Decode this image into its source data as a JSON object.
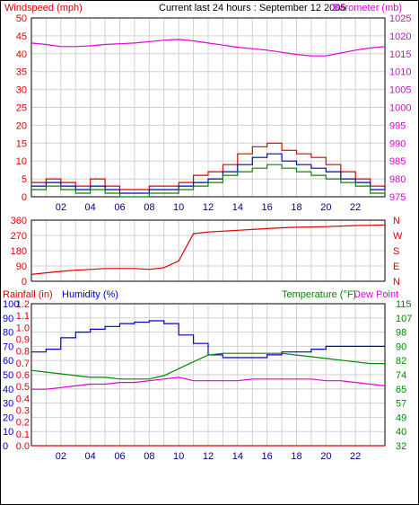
{
  "header": {
    "title": "Current last 24 hours : September 12 2005",
    "windspeed_label": "Windspeed (mph)",
    "barometer_label": "Barometer (mb)"
  },
  "colors": {
    "red": "#dd0000",
    "blue": "#0000cc",
    "green": "#008800",
    "magenta": "#dd00dd",
    "grid": "#d0d0d0",
    "frame": "#000000"
  },
  "x_ticks": [
    "02",
    "04",
    "06",
    "08",
    "10",
    "12",
    "14",
    "16",
    "18",
    "20",
    "22"
  ],
  "chart_data": [
    {
      "type": "line",
      "name": "wind-barometer",
      "ylabel_left": "Windspeed (mph)",
      "ylabel_right": "Barometer (mb)",
      "y_left_ticks": [
        "50",
        "45",
        "40",
        "35",
        "30",
        "25",
        "20",
        "15",
        "10",
        "5",
        "0"
      ],
      "y_left_range": [
        0,
        50
      ],
      "y_right_ticks": [
        "1025",
        "1020",
        "1015",
        "1010",
        "1005",
        "1000",
        "995",
        "990",
        "985",
        "980",
        "975"
      ],
      "y_right_range": [
        975,
        1025
      ],
      "x_hours": [
        0,
        1,
        2,
        3,
        4,
        5,
        6,
        7,
        8,
        9,
        10,
        11,
        12,
        13,
        14,
        15,
        16,
        17,
        18,
        19,
        20,
        21,
        22,
        23,
        24
      ],
      "series": [
        {
          "name": "barometer",
          "color": "#dd00dd",
          "axis": "right",
          "values": [
            1018.0,
            1017.6,
            1017.0,
            1017.0,
            1017.2,
            1017.6,
            1017.8,
            1018.0,
            1018.4,
            1018.8,
            1019.0,
            1018.6,
            1018.0,
            1017.4,
            1016.8,
            1016.4,
            1016.0,
            1015.4,
            1014.8,
            1014.4,
            1014.4,
            1015.2,
            1016.0,
            1016.6,
            1017.0
          ]
        },
        {
          "name": "gust",
          "color": "#dd0000",
          "axis": "left",
          "values": [
            4,
            5,
            4,
            3,
            5,
            3,
            2,
            2,
            3,
            3,
            4,
            6,
            7,
            9,
            12,
            14,
            15,
            13,
            12,
            11,
            9,
            7,
            5,
            3,
            4
          ]
        },
        {
          "name": "windspeed",
          "color": "#0000cc",
          "axis": "left",
          "values": [
            3,
            4,
            3,
            2,
            3,
            2,
            1,
            1,
            2,
            2,
            3,
            4,
            5,
            7,
            9,
            11,
            12,
            10,
            9,
            8,
            7,
            5,
            4,
            2,
            3
          ]
        },
        {
          "name": "average",
          "color": "#008800",
          "axis": "left",
          "values": [
            2,
            3,
            2,
            1,
            2,
            1,
            0,
            0,
            1,
            1,
            2,
            3,
            4,
            6,
            7,
            8,
            9,
            8,
            7,
            6,
            5,
            4,
            3,
            1,
            2
          ]
        }
      ]
    },
    {
      "type": "line",
      "name": "wind-direction",
      "y_left_ticks": [
        "360",
        "270",
        "180",
        "90",
        "0"
      ],
      "y_left_range": [
        0,
        360
      ],
      "y_right_ticks": [
        "N",
        "W",
        "S",
        "E",
        "N"
      ],
      "x_hours": [
        0,
        1,
        2,
        3,
        4,
        5,
        6,
        7,
        8,
        9,
        10,
        10.5,
        11,
        12,
        13,
        14,
        15,
        16,
        17,
        18,
        19,
        20,
        21,
        22,
        23,
        24
      ],
      "series": [
        {
          "name": "direction",
          "color": "#dd0000",
          "values": [
            40,
            50,
            58,
            65,
            70,
            75,
            75,
            75,
            70,
            80,
            120,
            200,
            280,
            290,
            295,
            300,
            305,
            310,
            315,
            318,
            320,
            322,
            325,
            328,
            330,
            332
          ]
        }
      ]
    },
    {
      "type": "line",
      "name": "rain-humidity-temperature",
      "ylabel_left_1": "Rainfall (in)",
      "ylabel_left_2": "Humidity (%)",
      "ylabel_right_1": "Temperature (°F)",
      "ylabel_right_2": "Dew Point",
      "rain_ticks": [
        "1.2",
        "1.1",
        "1.0",
        "0.9",
        "0.8",
        "0.7",
        "0.6",
        "0.5",
        "0.4",
        "0.3",
        "0.2",
        "0.1",
        "0.0"
      ],
      "rain_range": [
        0,
        1.2
      ],
      "humidity_ticks": [
        "100",
        "90",
        "80",
        "70",
        "60",
        "50",
        "40",
        "30",
        "20",
        "10",
        "0"
      ],
      "humidity_range": [
        0,
        100
      ],
      "temp_ticks": [
        "115",
        "107",
        "98",
        "90",
        "82",
        "74",
        "65",
        "57",
        "49",
        "40",
        "32"
      ],
      "temp_range": [
        32,
        115
      ],
      "x_hours": [
        0,
        1,
        2,
        3,
        4,
        5,
        6,
        7,
        8,
        9,
        10,
        11,
        12,
        13,
        14,
        15,
        16,
        17,
        18,
        19,
        20,
        21,
        22,
        23,
        24
      ],
      "series": [
        {
          "name": "rainfall",
          "color": "#dd0000",
          "axis": "rain",
          "values": [
            0,
            0,
            0,
            0,
            0,
            0,
            0,
            0,
            0,
            0,
            0,
            0,
            0,
            0,
            0,
            0,
            0,
            0,
            0,
            0,
            0,
            0,
            0,
            0,
            0
          ]
        },
        {
          "name": "humidity",
          "color": "#0000cc",
          "axis": "humidity",
          "values": [
            66,
            68,
            76,
            80,
            82,
            84,
            86,
            87,
            88,
            86,
            78,
            72,
            64,
            62,
            62,
            62,
            64,
            66,
            66,
            68,
            70,
            70,
            70,
            70,
            70
          ]
        },
        {
          "name": "temperature",
          "color": "#008800",
          "axis": "temp",
          "values": [
            76,
            75,
            74,
            73,
            72,
            72,
            71,
            71,
            71,
            73,
            77,
            81,
            85,
            86,
            86,
            86,
            86,
            86,
            85,
            84,
            83,
            82,
            81,
            80,
            80
          ]
        },
        {
          "name": "dew-point",
          "color": "#dd00dd",
          "axis": "temp",
          "values": [
            65,
            65,
            66,
            67,
            68,
            68,
            69,
            69,
            70,
            71,
            72,
            70,
            70,
            70,
            70,
            71,
            71,
            71,
            71,
            71,
            70,
            70,
            69,
            68,
            67
          ]
        }
      ]
    }
  ]
}
